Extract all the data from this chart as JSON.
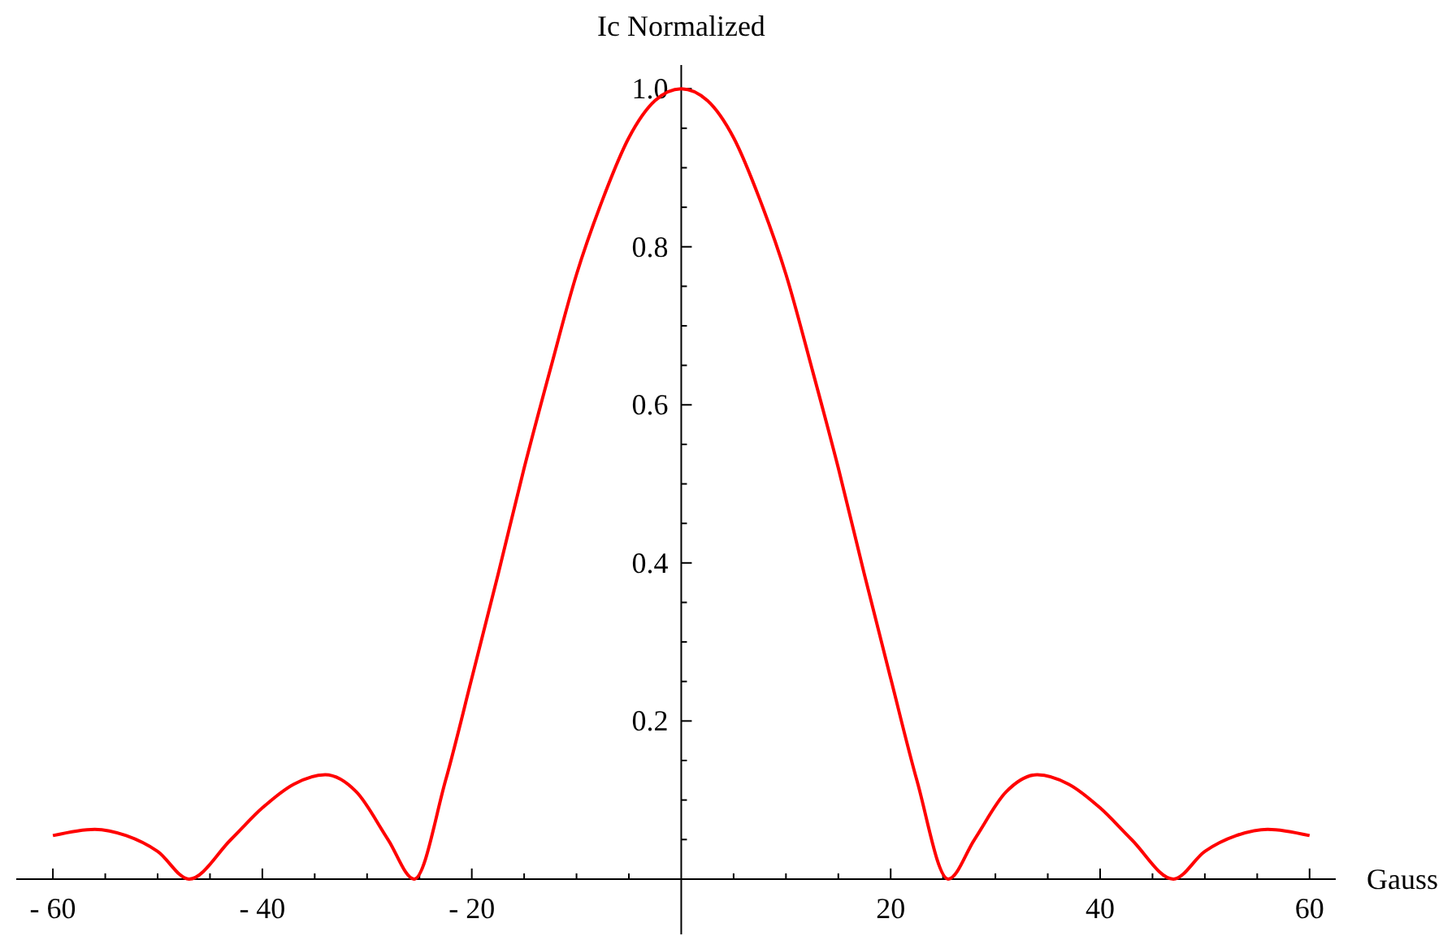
{
  "chart_data": {
    "type": "line",
    "xlabel": "Gauss",
    "ylabel": "Ic Normalized",
    "xlim": [
      -63.5,
      62.5
    ],
    "ylim": [
      -0.07,
      1.03
    ],
    "xticks": [
      {
        "value": -60,
        "label": "- 60"
      },
      {
        "value": -55,
        "label": null
      },
      {
        "value": -50,
        "label": null
      },
      {
        "value": -45,
        "label": null
      },
      {
        "value": -40,
        "label": "- 40"
      },
      {
        "value": -35,
        "label": null
      },
      {
        "value": -30,
        "label": null
      },
      {
        "value": -25,
        "label": null
      },
      {
        "value": -20,
        "label": "- 20"
      },
      {
        "value": -15,
        "label": null
      },
      {
        "value": -10,
        "label": null
      },
      {
        "value": -5,
        "label": null
      },
      {
        "value": 5,
        "label": null
      },
      {
        "value": 10,
        "label": null
      },
      {
        "value": 15,
        "label": null
      },
      20,
      {
        "value": 25,
        "label": null
      },
      {
        "value": 30,
        "label": null
      },
      {
        "value": 35,
        "label": null
      },
      40,
      {
        "value": 45,
        "label": null
      },
      {
        "value": 50,
        "label": null
      },
      {
        "value": 55,
        "label": null
      },
      60
    ],
    "yticks": [
      {
        "value": 0.05,
        "label": null
      },
      {
        "value": 0.1,
        "label": null
      },
      {
        "value": 0.15,
        "label": null
      },
      0.2,
      {
        "value": 0.25,
        "label": null
      },
      {
        "value": 0.3,
        "label": null
      },
      {
        "value": 0.35,
        "label": null
      },
      0.4,
      {
        "value": 0.45,
        "label": null
      },
      {
        "value": 0.5,
        "label": null
      },
      {
        "value": 0.55,
        "label": null
      },
      0.6,
      {
        "value": 0.65,
        "label": null
      },
      {
        "value": 0.7,
        "label": null
      },
      {
        "value": 0.75,
        "label": null
      },
      0.8,
      {
        "value": 0.85,
        "label": null
      },
      {
        "value": 0.9,
        "label": null
      },
      {
        "value": 0.95,
        "label": null
      },
      {
        "value": 1,
        "label": "1.0"
      }
    ],
    "grid": false,
    "marker": "none",
    "line_style": "solid",
    "series": [
      {
        "color": "#ff0000",
        "x": [
          -60,
          -56,
          -53,
          -50,
          -47,
          -43,
          -40,
          -37,
          -34,
          -31,
          -28,
          -25.5,
          -22.5,
          -20,
          -17.5,
          -15,
          -12.5,
          -10,
          -7.5,
          -5,
          -2.5,
          0,
          2.5,
          5,
          7.5,
          10,
          12.5,
          15,
          17.5,
          20,
          22.5,
          25.5,
          28,
          31,
          34,
          37,
          40,
          43,
          47,
          50,
          53,
          56,
          60
        ],
        "values": [
          0.055,
          0.063,
          0.055,
          0.035,
          0,
          0.05,
          0.09,
          0.12,
          0.132,
          0.11,
          0.05,
          0,
          0.125,
          0.254,
          0.385,
          0.52,
          0.645,
          0.765,
          0.86,
          0.938,
          0.985,
          1,
          0.985,
          0.938,
          0.86,
          0.765,
          0.645,
          0.52,
          0.385,
          0.254,
          0.125,
          0,
          0.05,
          0.11,
          0.132,
          0.12,
          0.09,
          0.05,
          0,
          0.035,
          0.055,
          0.063,
          0.055
        ]
      }
    ]
  }
}
